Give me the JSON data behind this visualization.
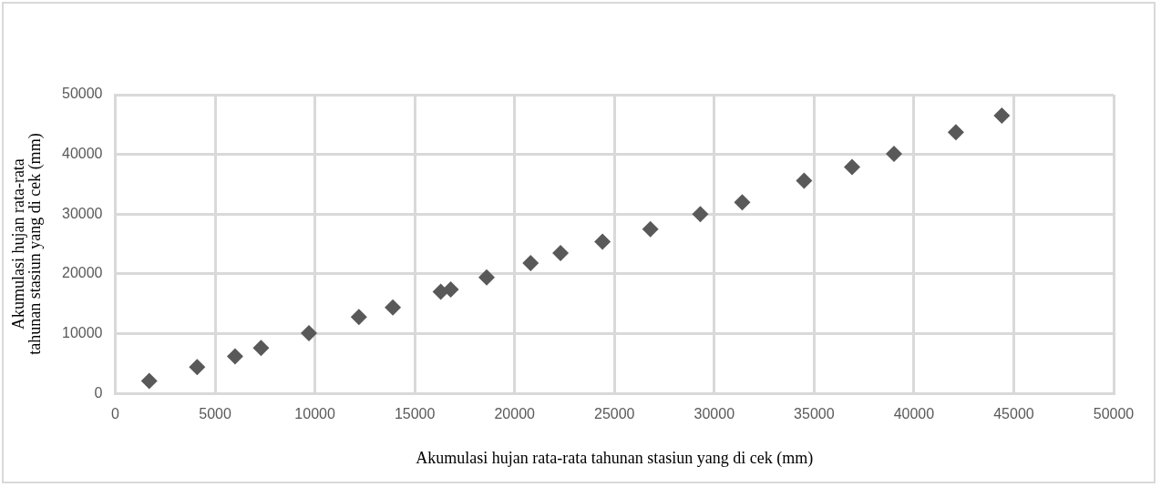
{
  "chart_data": {
    "type": "scatter",
    "xlabel": "Akumulasi hujan rata-rata tahunan stasiun yang di cek (mm)",
    "ylabel": "Akumulasi hujan rata-rata\ntahunan stasiun yang di cek (mm)",
    "xlim": [
      0,
      50000
    ],
    "xticks": [
      0,
      5000,
      10000,
      15000,
      20000,
      25000,
      30000,
      35000,
      40000,
      45000,
      50000
    ],
    "ylim": [
      0,
      50000
    ],
    "yticks": [
      0,
      10000,
      20000,
      30000,
      40000,
      50000
    ],
    "grid": true,
    "legend": false,
    "marker": "diamond",
    "series": [
      {
        "color": "#595959",
        "x": [
          1700,
          4100,
          6000,
          7300,
          9700,
          12200,
          13900,
          16300,
          16800,
          18600,
          20800,
          22300,
          24400,
          26800,
          29300,
          31400,
          34500,
          36900,
          39000,
          42100,
          44400
        ],
        "values": [
          2100,
          4400,
          6200,
          7600,
          10100,
          12800,
          14400,
          17000,
          17400,
          19400,
          21800,
          23500,
          25400,
          27500,
          30000,
          32000,
          35600,
          37900,
          40100,
          43700,
          46500
        ]
      }
    ]
  }
}
